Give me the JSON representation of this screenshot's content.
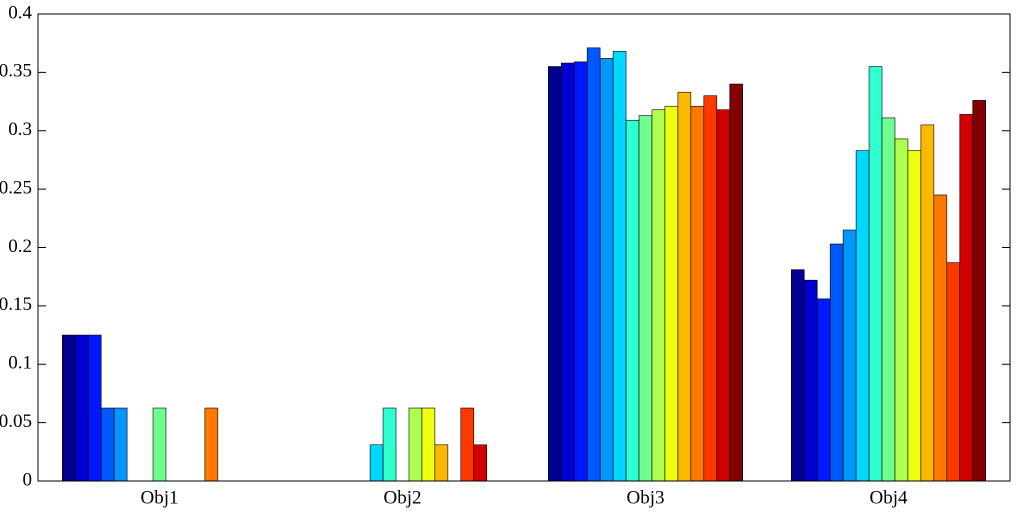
{
  "chart_data": {
    "type": "bar",
    "categories": [
      "Obj1",
      "Obj2",
      "Obj3",
      "Obj4"
    ],
    "series": [
      {
        "color": "#00008f",
        "values": [
          0.125,
          0,
          0.355,
          0.181
        ]
      },
      {
        "color": "#0000d0",
        "values": [
          0.125,
          0,
          0.358,
          0.172
        ]
      },
      {
        "color": "#0018ff",
        "values": [
          0.125,
          0,
          0.359,
          0.156
        ]
      },
      {
        "color": "#0058ff",
        "values": [
          0.0625,
          0,
          0.371,
          0.203
        ]
      },
      {
        "color": "#0098ff",
        "values": [
          0.0625,
          0,
          0.362,
          0.215
        ]
      },
      {
        "color": "#00d8ff",
        "values": [
          0,
          0.031,
          0.368,
          0.283
        ]
      },
      {
        "color": "#30ffcf",
        "values": [
          0,
          0.0625,
          0.309,
          0.355
        ]
      },
      {
        "color": "#70ff8f",
        "values": [
          0.0625,
          0,
          0.313,
          0.311
        ]
      },
      {
        "color": "#afff50",
        "values": [
          0,
          0.0625,
          0.318,
          0.293
        ]
      },
      {
        "color": "#efff10",
        "values": [
          0,
          0.0625,
          0.321,
          0.283
        ]
      },
      {
        "color": "#ffb800",
        "values": [
          0,
          0.031,
          0.333,
          0.305
        ]
      },
      {
        "color": "#ff7800",
        "values": [
          0.0625,
          0,
          0.321,
          0.245
        ]
      },
      {
        "color": "#ff3800",
        "values": [
          0,
          0.0625,
          0.33,
          0.187
        ]
      },
      {
        "color": "#d00000",
        "values": [
          0,
          0.031,
          0.318,
          0.314
        ]
      },
      {
        "color": "#800000",
        "values": [
          0,
          0,
          0.34,
          0.326
        ]
      }
    ],
    "ylim": [
      0,
      0.4
    ],
    "yticks": [
      0,
      0.05,
      0.1,
      0.15,
      0.2,
      0.25,
      0.3,
      0.35,
      0.4
    ],
    "grid": false
  }
}
